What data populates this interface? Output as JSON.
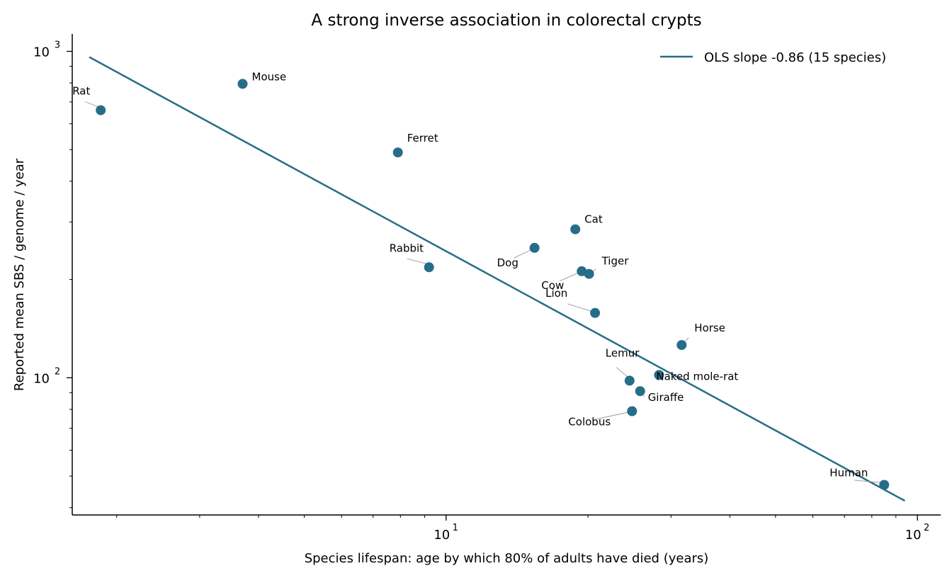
{
  "chart_data": {
    "type": "scatter",
    "title": "A strong inverse association in colorectal crypts",
    "xlabel": "Species lifespan: age by which 80% of adults have died (years)",
    "ylabel": "Reported mean SBS / genome / year",
    "x_scale": "log",
    "y_scale": "log",
    "xlim": [
      1.61,
      112
    ],
    "ylim": [
      38,
      1130
    ],
    "x_ticks": [
      {
        "value": 10,
        "base": "10",
        "exp": "1"
      },
      {
        "value": 100,
        "base": "10",
        "exp": "2"
      }
    ],
    "y_ticks": [
      {
        "value": 100,
        "base": "10",
        "exp": "2"
      },
      {
        "value": 1000,
        "base": "10",
        "exp": "3"
      }
    ],
    "grid": false,
    "legend_position": "top-right",
    "colors": {
      "points": "#266e87",
      "fit_line": "#266e87",
      "leader": "#999999"
    },
    "points": [
      {
        "label": "Rat",
        "x": 1.85,
        "y": 660
      },
      {
        "label": "Mouse",
        "x": 3.7,
        "y": 795
      },
      {
        "label": "Ferret",
        "x": 7.9,
        "y": 490
      },
      {
        "label": "Rabbit",
        "x": 9.2,
        "y": 218
      },
      {
        "label": "Dog",
        "x": 15.4,
        "y": 250
      },
      {
        "label": "Cat",
        "x": 18.8,
        "y": 285
      },
      {
        "label": "Tiger",
        "x": 20.1,
        "y": 208
      },
      {
        "label": "Cow",
        "x": 19.4,
        "y": 212
      },
      {
        "label": "Lion",
        "x": 20.7,
        "y": 158
      },
      {
        "label": "Horse",
        "x": 31.6,
        "y": 126
      },
      {
        "label": "Naked mole-rat",
        "x": 28.3,
        "y": 102
      },
      {
        "label": "Lemur",
        "x": 24.5,
        "y": 98
      },
      {
        "label": "Giraffe",
        "x": 25.8,
        "y": 91
      },
      {
        "label": "Colobus",
        "x": 24.8,
        "y": 79
      },
      {
        "label": "Human",
        "x": 85.0,
        "y": 47
      }
    ],
    "fit_line": {
      "name": "OLS slope -0.86 (15 species)",
      "x": [
        1.75,
        94
      ],
      "y": [
        960,
        42
      ]
    }
  }
}
